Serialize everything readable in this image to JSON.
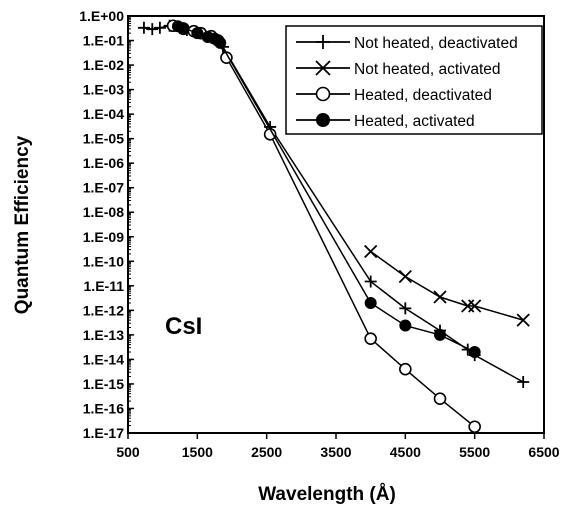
{
  "chart_data": {
    "type": "line",
    "title": "",
    "xlabel": "Wavelength (Å)",
    "ylabel": "Quantum Efficiency",
    "xlim": [
      500,
      6500
    ],
    "ylim_log10": [
      -17,
      0
    ],
    "y_scale": "log",
    "x_ticks": [
      500,
      1500,
      2500,
      3500,
      4500,
      5500,
      6500
    ],
    "y_tick_labels": [
      "1.E+00",
      "1.E-01",
      "1.E-02",
      "1.E-03",
      "1.E-04",
      "1.E-05",
      "1.E-06",
      "1.E-07",
      "1.E-08",
      "1.E-09",
      "1.E-10",
      "1.E-11",
      "1.E-12",
      "1.E-13",
      "1.E-14",
      "1.E-15",
      "1.E-16",
      "1.E-17"
    ],
    "grid": false,
    "legend_position": "top-right",
    "annotation": "CsI",
    "series": [
      {
        "name": "Not heated, deactivated",
        "marker": "plus",
        "points": [
          [
            730,
            0.33
          ],
          [
            850,
            0.29
          ],
          [
            960,
            0.33
          ],
          [
            1100,
            0.4
          ],
          [
            1250,
            0.32
          ],
          [
            1350,
            0.27
          ],
          [
            1470,
            0.22
          ],
          [
            1600,
            0.18
          ],
          [
            1700,
            0.13
          ],
          [
            1800,
            0.09
          ],
          [
            1870,
            0.055
          ],
          [
            2550,
            3e-05
          ],
          [
            4000,
            1.5e-11
          ],
          [
            4500,
            1.2e-12
          ],
          [
            5000,
            1.5e-13
          ],
          [
            5400,
            2.5e-14
          ],
          [
            5500,
            1.5e-14
          ],
          [
            6200,
            1.2e-15
          ]
        ]
      },
      {
        "name": "Not heated, activated",
        "marker": "x",
        "points": [
          [
            4000,
            2.5e-10
          ],
          [
            4500,
            2.4e-11
          ],
          [
            5000,
            3.5e-12
          ],
          [
            5400,
            1.5e-12
          ],
          [
            5500,
            1.5e-12
          ],
          [
            6200,
            4e-13
          ]
        ]
      },
      {
        "name": "Heated, deactivated",
        "marker": "open-circle",
        "points": [
          [
            1150,
            0.4
          ],
          [
            1300,
            0.3
          ],
          [
            1450,
            0.24
          ],
          [
            1550,
            0.2
          ],
          [
            1700,
            0.15
          ],
          [
            1800,
            0.1
          ],
          [
            1920,
            0.02
          ],
          [
            2550,
            1.5e-05
          ],
          [
            4000,
            7e-14
          ],
          [
            4500,
            4e-15
          ],
          [
            5000,
            2.5e-16
          ],
          [
            5500,
            1.8e-17
          ]
        ]
      },
      {
        "name": "Heated, activated",
        "marker": "filled-circle",
        "points": [
          [
            1220,
            0.38
          ],
          [
            1300,
            0.32
          ],
          [
            1500,
            0.2
          ],
          [
            1650,
            0.14
          ],
          [
            1750,
            0.12
          ],
          [
            1830,
            0.08
          ],
          [
            4000,
            2e-12
          ],
          [
            4500,
            2.4e-13
          ],
          [
            5000,
            1e-13
          ],
          [
            5500,
            2e-14
          ]
        ]
      }
    ]
  }
}
